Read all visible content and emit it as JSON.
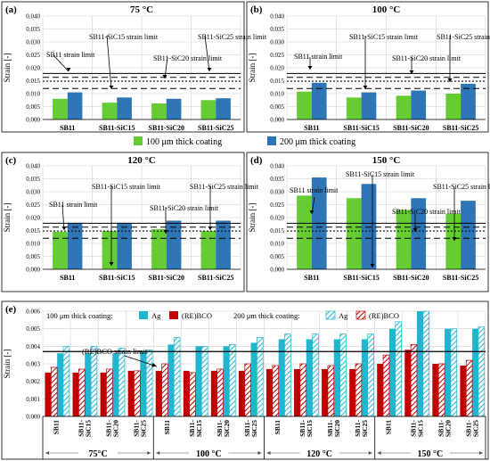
{
  "colors": {
    "green": "#66CC33",
    "blue": "#2E75B6",
    "cyan": "#22B5CF",
    "red": "#C00000",
    "grid": "#D0D0D0"
  },
  "top_legend": {
    "c100": "100 μm thick coating",
    "c200": "200 μm thick coating"
  },
  "e_legend": {
    "h100": "100 μm thick coating:",
    "h200": "200 μm thick coating:",
    "ag": "Ag",
    "rebco": "(RE)BCO"
  },
  "chart_data": [
    {
      "id": "a",
      "type": "bar",
      "panel_label": "(a)",
      "title": "75 °C",
      "ylabel": "Strain [-]",
      "ylim": [
        0,
        0.04
      ],
      "yticks": [
        "0.000",
        "0.005",
        "0.010",
        "0.015",
        "0.020",
        "0.025",
        "0.030",
        "0.035",
        "0.040"
      ],
      "categories": [
        "SB11",
        "SB11-SiC15",
        "SB11-SiC20",
        "SB11-SiC25"
      ],
      "series": [
        {
          "name": "100 μm thick coating",
          "values": [
            0.008,
            0.0065,
            0.0062,
            0.0075
          ]
        },
        {
          "name": "200 μm thick coating",
          "values": [
            0.0105,
            0.0085,
            0.008,
            0.0082
          ]
        }
      ],
      "limits": [
        {
          "label": "SB11 strain limit",
          "value": 0.0178,
          "style": "solid"
        },
        {
          "label": "SB11-SiC15 strain limit",
          "value": 0.012,
          "style": "dashed"
        },
        {
          "label": "SB11-SiC20 strain limit",
          "value": 0.0148,
          "style": "dotted"
        },
        {
          "label": "SB11-SiC25 strain limit",
          "value": 0.0163,
          "style": "dashed"
        }
      ]
    },
    {
      "id": "b",
      "type": "bar",
      "panel_label": "(b)",
      "title": "100 °C",
      "ylabel": "Strain [-]",
      "ylim": [
        0,
        0.04
      ],
      "yticks": [
        "0.000",
        "0.005",
        "0.010",
        "0.015",
        "0.020",
        "0.025",
        "0.030",
        "0.035",
        "0.040"
      ],
      "categories": [
        "SB11",
        "SB11-SiC15",
        "SB11-SiC20",
        "SB11-SiC25"
      ],
      "series": [
        {
          "name": "100 μm thick coating",
          "values": [
            0.0108,
            0.0085,
            0.0092,
            0.01
          ]
        },
        {
          "name": "200 μm thick coating",
          "values": [
            0.0142,
            0.0105,
            0.0112,
            0.0138
          ]
        }
      ],
      "limits": [
        {
          "label": "SB11 strain limit",
          "value": 0.0178,
          "style": "solid"
        },
        {
          "label": "SB11-SiC15 strain limit",
          "value": 0.012,
          "style": "dashed"
        },
        {
          "label": "SB11-SiC20 strain limit",
          "value": 0.0148,
          "style": "dotted"
        },
        {
          "label": "SB11-SiC25 strain limit",
          "value": 0.0163,
          "style": "dashed"
        }
      ]
    },
    {
      "id": "c",
      "type": "bar",
      "panel_label": "(c)",
      "title": "120 °C",
      "ylabel": "Strain [-]",
      "ylim": [
        0,
        0.04
      ],
      "yticks": [
        "0.000",
        "0.005",
        "0.010",
        "0.015",
        "0.020",
        "0.025",
        "0.030",
        "0.035",
        "0.040"
      ],
      "categories": [
        "SB11",
        "SB11-SiC15",
        "SB11-SiC20",
        "SB11-SiC25"
      ],
      "series": [
        {
          "name": "100 μm thick coating",
          "values": [
            0.0145,
            0.0148,
            0.0155,
            0.0148
          ]
        },
        {
          "name": "200 μm thick coating",
          "values": [
            0.018,
            0.018,
            0.0188,
            0.0188
          ]
        }
      ],
      "limits": [
        {
          "label": "SB11 strain limit",
          "value": 0.0178,
          "style": "solid"
        },
        {
          "label": "SB11-SiC15 strain limit",
          "value": 0.012,
          "style": "dashed"
        },
        {
          "label": "SB11-SiC20 strain limit",
          "value": 0.0148,
          "style": "dotted"
        },
        {
          "label": "SB11-SiC25 strain limit",
          "value": 0.0163,
          "style": "dashed"
        }
      ]
    },
    {
      "id": "d",
      "type": "bar",
      "panel_label": "(d)",
      "title": "150 °C",
      "ylabel": "Strain [-]",
      "ylim": [
        0,
        0.04
      ],
      "yticks": [
        "0.000",
        "0.005",
        "0.010",
        "0.015",
        "0.020",
        "0.025",
        "0.030",
        "0.035",
        "0.040"
      ],
      "categories": [
        "SB11",
        "SB11-SiC15",
        "SB11-SiC20",
        "SB11-SiC25"
      ],
      "series": [
        {
          "name": "100 μm thick coating",
          "values": [
            0.0285,
            0.0275,
            0.023,
            0.0215
          ]
        },
        {
          "name": "200 μm thick coating",
          "values": [
            0.0355,
            0.033,
            0.0275,
            0.0265
          ]
        }
      ],
      "limits": [
        {
          "label": "SB11 strain limit",
          "value": 0.0178,
          "style": "solid"
        },
        {
          "label": "SB11-SiC15 strain limit",
          "value": 0.012,
          "style": "dashed"
        },
        {
          "label": "SB11-SiC20 strain limit",
          "value": 0.0148,
          "style": "dotted"
        },
        {
          "label": "SB11-SiC25 strain limit",
          "value": 0.0163,
          "style": "dashed"
        }
      ]
    },
    {
      "id": "e",
      "type": "bar",
      "panel_label": "(e)",
      "ylabel": "Strain [-]",
      "ylim": [
        0,
        0.006
      ],
      "yticks": [
        "0.000",
        "0.001",
        "0.002",
        "0.003",
        "0.004",
        "0.005",
        "0.006"
      ],
      "limit_label": "(RE)BCO strain limit",
      "limit_value": 0.0037,
      "group_labels": [
        "75°C",
        "100 °C",
        "120 °C",
        "150 °C"
      ],
      "coating_labels": [
        "SB11",
        "SB11-\nSiC15",
        "SB11-\nSiC20",
        "SB11-\nSiC25"
      ],
      "series": [
        {
          "name": "Ag (100 μm)",
          "values": [
            0.0036,
            0.0036,
            0.0036,
            0.0037,
            0.0041,
            0.004,
            0.004,
            0.0042,
            0.0044,
            0.0044,
            0.0044,
            0.0044,
            0.005,
            0.006,
            0.005,
            0.005
          ]
        },
        {
          "name": "Ag (200 μm)",
          "values": [
            0.004,
            0.004,
            0.0039,
            0.0038,
            0.0045,
            0.004,
            0.0041,
            0.0045,
            0.0047,
            0.0047,
            0.0047,
            0.0047,
            0.0054,
            0.006,
            0.005,
            0.0051
          ]
        },
        {
          "name": "(RE)BCO (100 μm)",
          "values": [
            0.0025,
            0.0025,
            0.0025,
            0.0026,
            0.0026,
            0.0026,
            0.0026,
            0.0026,
            0.0027,
            0.0027,
            0.0027,
            0.0027,
            0.003,
            0.0038,
            0.003,
            0.0029
          ]
        },
        {
          "name": "(RE)BCO (200 μm)",
          "values": [
            0.0028,
            0.0027,
            0.0027,
            0.0026,
            0.003,
            0.0025,
            0.0027,
            0.003,
            0.0029,
            0.003,
            0.0029,
            0.003,
            0.0035,
            0.0041,
            0.003,
            0.0032
          ]
        }
      ]
    }
  ]
}
